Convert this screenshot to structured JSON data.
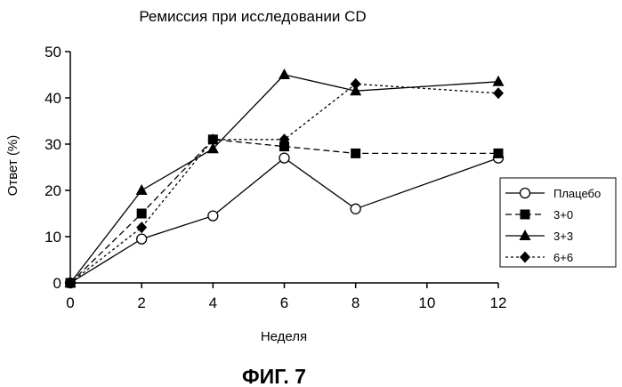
{
  "chart_data": {
    "type": "line",
    "title": "Ремиссия при исследовании CD",
    "xlabel": "Неделя",
    "ylabel": "Ответ (%)",
    "xlim": [
      0,
      12
    ],
    "ylim": [
      0,
      50
    ],
    "xticks": [
      0,
      2,
      4,
      6,
      8,
      10,
      12
    ],
    "yticks": [
      0,
      10,
      20,
      30,
      40,
      50
    ],
    "grid": false,
    "legend_position": "right",
    "series": [
      {
        "name": "Плацебо",
        "marker": "circle-open",
        "line_style": "solid",
        "x": [
          0,
          2,
          4,
          6,
          8,
          12
        ],
        "y": [
          0,
          9.5,
          14.5,
          27,
          16,
          27
        ]
      },
      {
        "name": "3+0",
        "marker": "square",
        "line_style": "dashed",
        "x": [
          0,
          2,
          4,
          6,
          8,
          12
        ],
        "y": [
          0,
          15,
          31,
          29.5,
          28,
          28
        ]
      },
      {
        "name": "3+3",
        "marker": "triangle",
        "line_style": "solid",
        "x": [
          0,
          2,
          4,
          6,
          8,
          12
        ],
        "y": [
          0,
          20,
          29,
          45,
          41.5,
          43.5
        ]
      },
      {
        "name": "6+6",
        "marker": "diamond",
        "line_style": "dotted",
        "x": [
          0,
          2,
          4,
          6,
          8,
          12
        ],
        "y": [
          0,
          12,
          31,
          31,
          43,
          41
        ]
      }
    ]
  },
  "figure_caption": "ФИГ. 7"
}
